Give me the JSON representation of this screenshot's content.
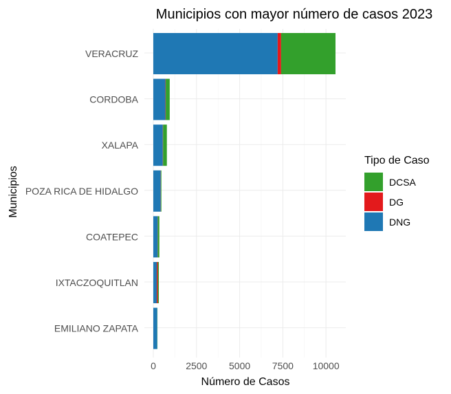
{
  "chart_data": {
    "type": "bar",
    "orientation": "horizontal",
    "stacked": true,
    "title": "Municipios con mayor número de casos 2023",
    "xlabel": "Número de Casos",
    "ylabel": "Municipios",
    "categories": [
      "VERACRUZ",
      "CORDOBA",
      "XALAPA",
      "POZA RICA DE HIDALGO",
      "COATEPEC",
      "IXTACZOQUITLAN",
      "EMILIANO ZAPATA"
    ],
    "series": [
      {
        "name": "DNG",
        "color": "#1f78b4",
        "values": [
          7200,
          700,
          550,
          430,
          250,
          200,
          230
        ]
      },
      {
        "name": "DG",
        "color": "#e31a1c",
        "values": [
          200,
          20,
          15,
          10,
          10,
          60,
          0
        ]
      },
      {
        "name": "DCSA",
        "color": "#33a02c",
        "values": [
          3150,
          230,
          220,
          30,
          90,
          60,
          10
        ]
      }
    ],
    "xlim": [
      0,
      11000
    ],
    "x_ticks": [
      0,
      2500,
      5000,
      7500,
      10000
    ],
    "x_tick_labels": [
      "0",
      "2500",
      "5000",
      "7500",
      "10000"
    ],
    "grid": true,
    "legend": {
      "title": "Tipo de Caso",
      "position": "right",
      "order": [
        "DCSA",
        "DG",
        "DNG"
      ]
    }
  }
}
